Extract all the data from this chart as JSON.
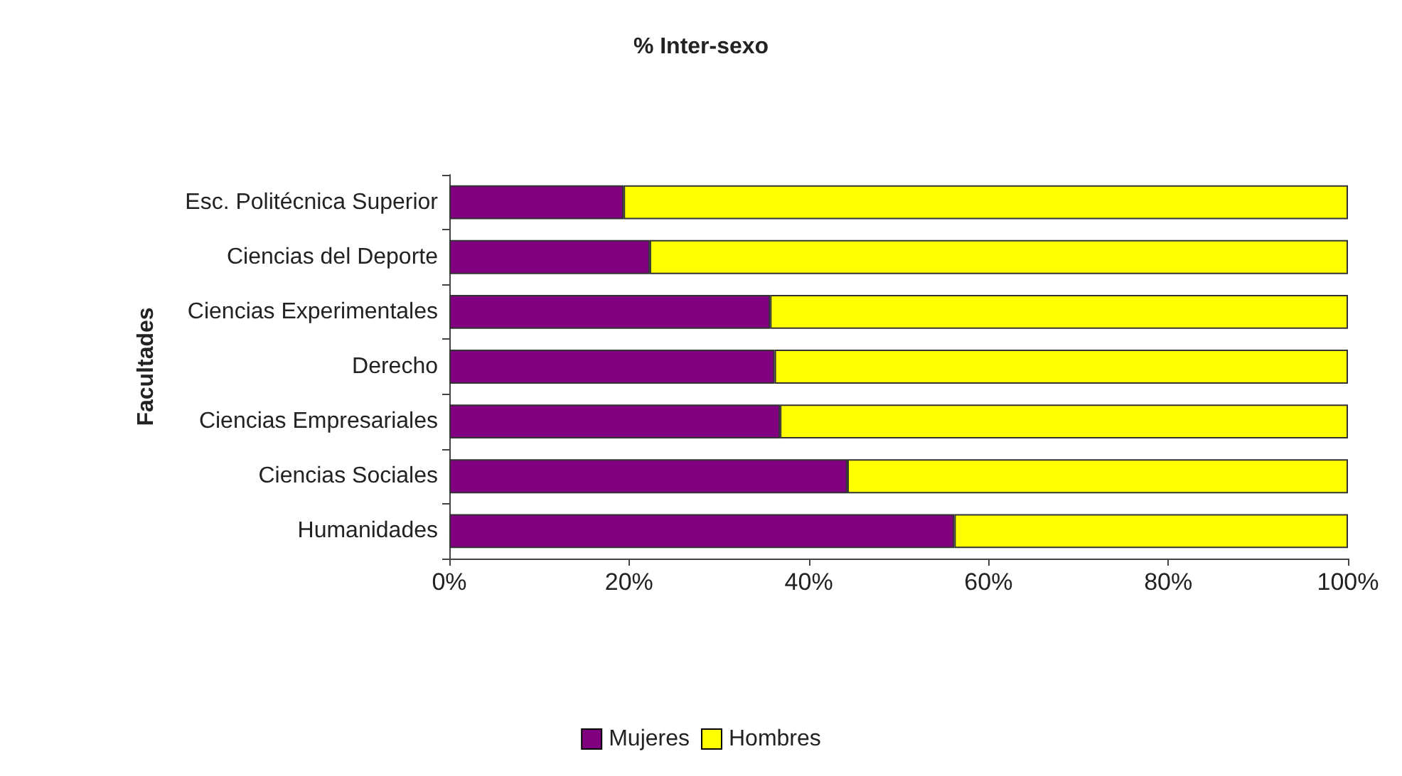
{
  "chart_data": {
    "type": "bar",
    "title": "% Inter-sexo",
    "ylabel": "Facultades",
    "orientation": "horizontal",
    "stacked": true,
    "categories": [
      "Esc. Politécnica Superior",
      "Ciencias del Deporte",
      "Ciencias Experimentales",
      "Derecho",
      "Ciencias Empresariales",
      "Ciencias Sociales",
      "Humanidades"
    ],
    "series": [
      {
        "name": "Mujeres",
        "color": "#800080",
        "values": [
          19.4,
          22.3,
          35.7,
          36.2,
          36.8,
          44.3,
          56.2
        ]
      },
      {
        "name": "Hombres",
        "color": "#ffff00",
        "values": [
          80.6,
          77.7,
          64.3,
          63.8,
          63.2,
          55.7,
          43.8
        ]
      }
    ],
    "xlim": [
      0,
      100
    ],
    "xticks": [
      {
        "value": 0,
        "label": "0%"
      },
      {
        "value": 20,
        "label": "20%"
      },
      {
        "value": 40,
        "label": "40%"
      },
      {
        "value": 60,
        "label": "60%"
      },
      {
        "value": 80,
        "label": "80%"
      },
      {
        "value": 100,
        "label": "100%"
      }
    ],
    "grid": false,
    "legend": "bottom"
  }
}
